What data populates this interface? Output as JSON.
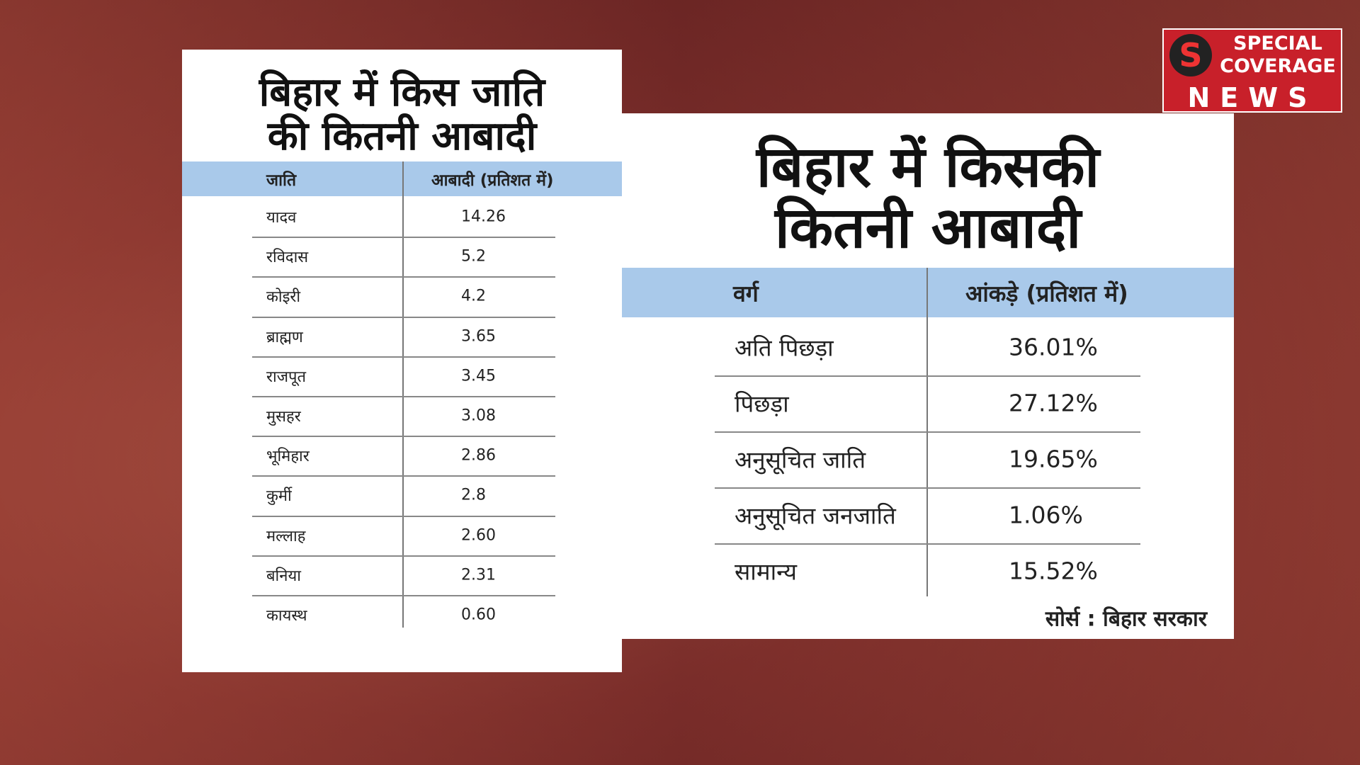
{
  "logo": {
    "letter": "S",
    "line1": "SPECIAL",
    "line2": "COVERAGE",
    "line3": "NEWS"
  },
  "left_table": {
    "title_line1": "बिहार में किस जाति",
    "title_line2": "की कितनी आबादी",
    "headers": [
      "जाति",
      "आबादी (प्रतिशत में)"
    ],
    "rows": [
      [
        "यादव",
        "14.26"
      ],
      [
        "रविदास",
        "5.2"
      ],
      [
        "कोइरी",
        "4.2"
      ],
      [
        "ब्राह्मण",
        "3.65"
      ],
      [
        "राजपूत",
        "3.45"
      ],
      [
        "मुसहर",
        "3.08"
      ],
      [
        "भूमिहार",
        "2.86"
      ],
      [
        "कुर्मी",
        "2.8"
      ],
      [
        "मल्लाह",
        "2.60"
      ],
      [
        "बनिया",
        "2.31"
      ],
      [
        "कायस्थ",
        "0.60"
      ]
    ]
  },
  "right_table": {
    "title_line1": "बिहार में किसकी",
    "title_line2": "कितनी आबादी",
    "headers": [
      "वर्ग",
      "आंकड़े (प्रतिशत में)"
    ],
    "rows": [
      [
        "अति पिछड़ा",
        "36.01%"
      ],
      [
        "पिछड़ा",
        "27.12%"
      ],
      [
        "अनुसूचित जाति",
        "19.65%"
      ],
      [
        "अनुसूचित जनजाति",
        "1.06%"
      ],
      [
        "सामान्य",
        "15.52%"
      ]
    ],
    "source": "सोर्स : बिहार सरकार"
  }
}
